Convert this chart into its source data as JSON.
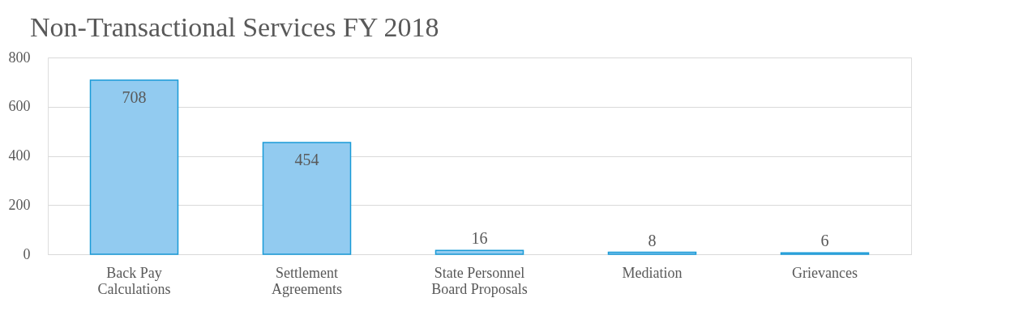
{
  "chart_data": {
    "type": "bar",
    "title": "Non-Transactional Services FY 2018",
    "categories": [
      "Back Pay Calculations",
      "Settlement Agreements",
      "State Personnel Board Proposals",
      "Mediation",
      "Grievances"
    ],
    "values": [
      708,
      454,
      16,
      8,
      6
    ],
    "color": "#92cbf0",
    "ylim": [
      0,
      800
    ],
    "yticks": [
      0,
      200,
      400,
      600,
      800
    ],
    "grid": "y",
    "data_labels": true
  }
}
